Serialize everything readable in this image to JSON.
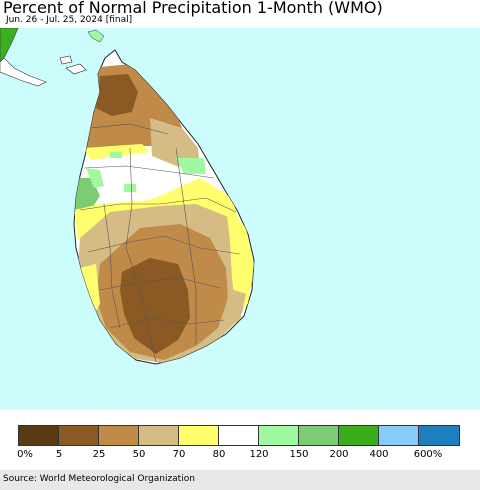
{
  "title": "Percent of Normal Precipitation 1-Month (WMO)",
  "subtitle": "Jun. 26 - Jul. 25, 2024 [final]",
  "source": "Source: World Meteorological Organization",
  "map": {
    "ocean_color": "#cdfcfd",
    "land_base_color": "#ffffff",
    "india_color": "#3db020",
    "legend_colors": [
      "#5a3a12",
      "#8b5a24",
      "#c08a48",
      "#d4bc84",
      "#ffff6e",
      "#ffffff",
      "#a0f8a0",
      "#7ccc74",
      "#3aae1a",
      "#88caf8",
      "#1e7ec0"
    ],
    "legend_labels": [
      "0%",
      "5",
      "25",
      "50",
      "70",
      "80",
      "120",
      "150",
      "200",
      "400",
      "600%"
    ]
  }
}
